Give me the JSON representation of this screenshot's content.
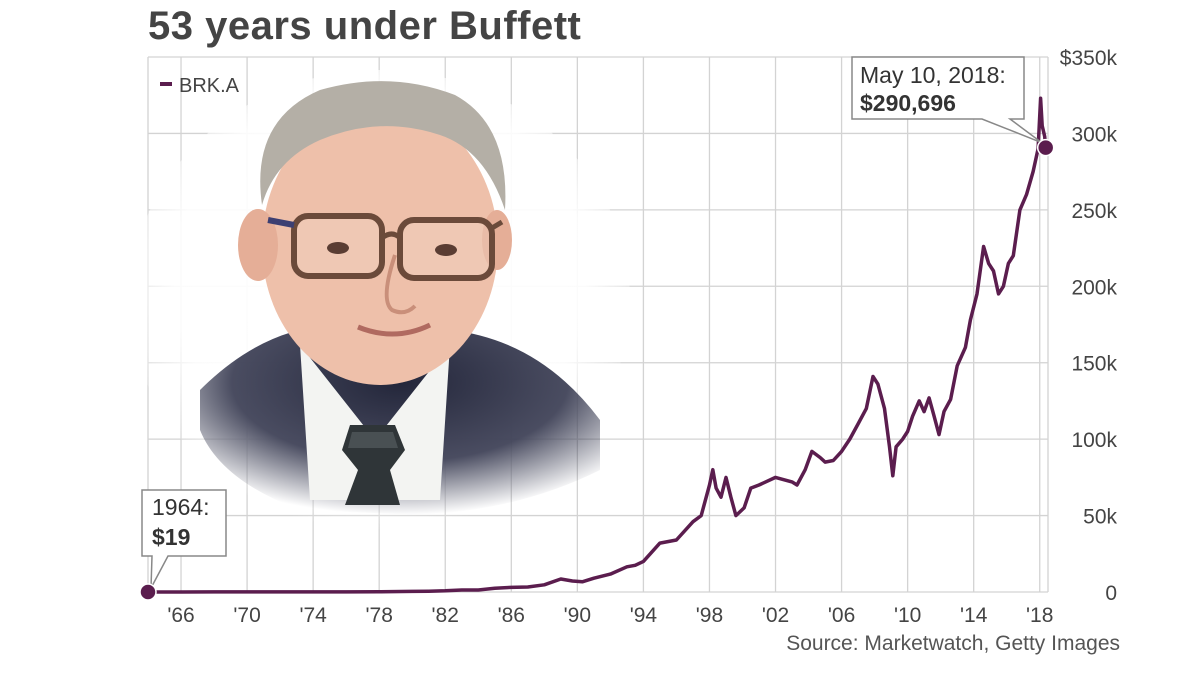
{
  "title": "53 years under Buffett",
  "source": "Source: Marketwatch, Getty Images",
  "chart_data": {
    "type": "line",
    "title": "53 years under Buffett",
    "legend": "top-left",
    "grid": true,
    "ylim": [
      0,
      350000
    ],
    "xlim": [
      1964,
      2018.5
    ],
    "ytick_labels": [
      "0",
      "50k",
      "100k",
      "150k",
      "200k",
      "250k",
      "300k",
      "$350k"
    ],
    "ytick_values": [
      0,
      50000,
      100000,
      150000,
      200000,
      250000,
      300000,
      350000
    ],
    "xtick_labels": [
      "'66",
      "'70",
      "'74",
      "'78",
      "'82",
      "'86",
      "'90",
      "'94",
      "'98",
      "'02",
      "'06",
      "'10",
      "'14",
      "'18"
    ],
    "xtick_values": [
      1966,
      1970,
      1974,
      1978,
      1982,
      1986,
      1990,
      1994,
      1998,
      2002,
      2006,
      2010,
      2014,
      2018
    ],
    "series": [
      {
        "name": "BRK.A",
        "color": "#5b1d4e",
        "x": [
          1964,
          1966,
          1968,
          1970,
          1972,
          1974,
          1976,
          1978,
          1980,
          1981,
          1982,
          1983,
          1984,
          1985,
          1986,
          1987,
          1988,
          1989,
          1989.7,
          1990.3,
          1991,
          1992,
          1993,
          1993.5,
          1994,
          1995,
          1996,
          1997,
          1997.5,
          1998,
          1998.2,
          1998.4,
          1998.7,
          1999,
          1999.3,
          1999.6,
          2000.1,
          2000.5,
          2001,
          2002,
          2003,
          2003.3,
          2003.8,
          2004.2,
          2004.7,
          2005,
          2005.5,
          2006,
          2006.5,
          2007,
          2007.5,
          2007.9,
          2008.2,
          2008.6,
          2008.9,
          2009.1,
          2009.3,
          2009.7,
          2010,
          2010.3,
          2010.7,
          2011,
          2011.3,
          2011.6,
          2011.9,
          2012.2,
          2012.6,
          2013,
          2013.5,
          2013.8,
          2014.2,
          2014.6,
          2014.9,
          2015.2,
          2015.5,
          2015.8,
          2016.1,
          2016.4,
          2016.8,
          2017.2,
          2017.6,
          2017.9,
          2018.05,
          2018.15,
          2018.3,
          2018.36
        ],
        "values": [
          19,
          20,
          40,
          40,
          80,
          40,
          90,
          150,
          400,
          500,
          800,
          1300,
          1300,
          2500,
          3000,
          3300,
          4700,
          8500,
          7200,
          6700,
          9000,
          11700,
          16500,
          17500,
          20000,
          32000,
          34000,
          46000,
          50000,
          70000,
          80000,
          68000,
          62000,
          75000,
          62000,
          50000,
          55000,
          68000,
          70000,
          75000,
          72000,
          70000,
          80000,
          92000,
          88000,
          85000,
          86000,
          92000,
          100000,
          110000,
          120000,
          141000,
          136000,
          120000,
          95000,
          76000,
          95000,
          100000,
          105000,
          115000,
          125000,
          118000,
          127000,
          115000,
          103000,
          118000,
          126000,
          148000,
          160000,
          178000,
          195000,
          226000,
          215000,
          210000,
          195000,
          200000,
          215000,
          220000,
          250000,
          260000,
          275000,
          290000,
          323000,
          305000,
          298000,
          290696
        ]
      }
    ],
    "annotations": [
      {
        "x": 1964,
        "y": 19,
        "date_label": "1964:",
        "value_label": "$19"
      },
      {
        "x": 2018.36,
        "y": 290696,
        "date_label": "May 10, 2018:",
        "value_label": "$290,696"
      }
    ]
  }
}
